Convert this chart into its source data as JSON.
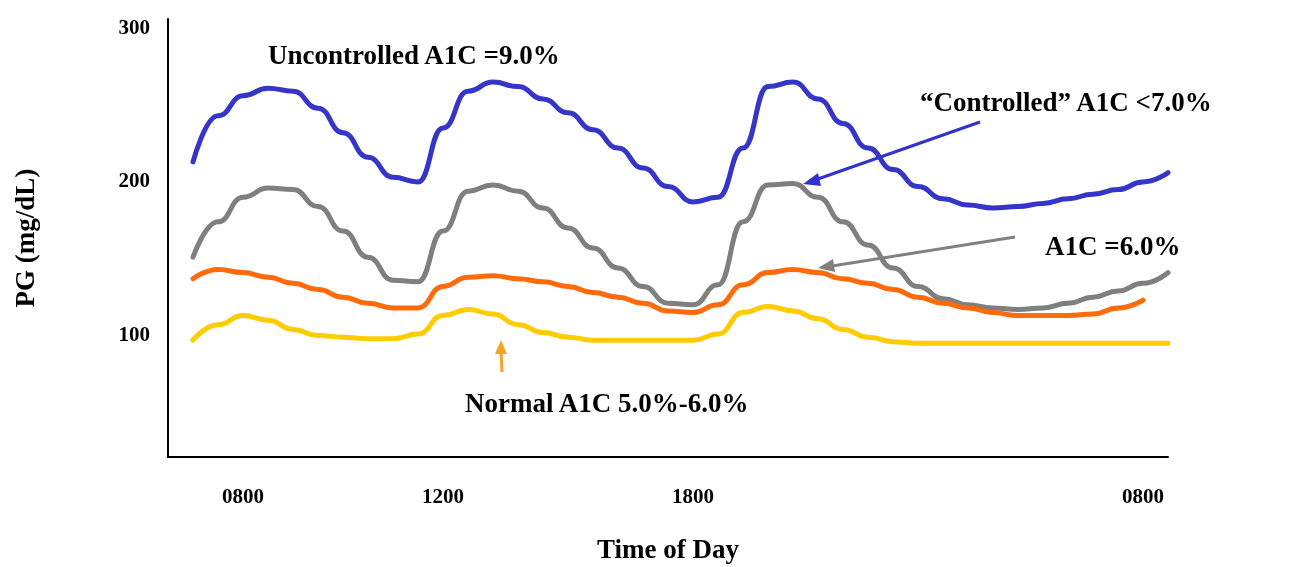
{
  "chart_data": {
    "type": "line",
    "xlabel": "Time of Day",
    "ylabel": "PG (mg/dL)",
    "categories": [
      null,
      null,
      null,
      "0800",
      null,
      null,
      null,
      null,
      null,
      null,
      null,
      "1200",
      null,
      null,
      null,
      null,
      null,
      null,
      null,
      null,
      null,
      "1800",
      null,
      null,
      null,
      null,
      null,
      null,
      null,
      null,
      null,
      null,
      null,
      null,
      null,
      null,
      null,
      null,
      null,
      "0800",
      null
    ],
    "series": [
      {
        "name": "Uncontrolled A1C =9.0%",
        "color": "#3535c8",
        "values": [
          null,
          212,
          242,
          255,
          260,
          258,
          247,
          231,
          215,
          202,
          199,
          234,
          258,
          264,
          261,
          253,
          244,
          233,
          221,
          208,
          196,
          186,
          189,
          221,
          261,
          264,
          253,
          237,
          221,
          207,
          196,
          188,
          184,
          182,
          183,
          185,
          188,
          191,
          194,
          199,
          205
        ]
      },
      {
        "name": "“Controlled” A1C <7.0%",
        "color": "#7f7f7f",
        "values": [
          null,
          150,
          173,
          189,
          195,
          194,
          183,
          167,
          150,
          135,
          134,
          167,
          193,
          197,
          193,
          182,
          169,
          156,
          143,
          131,
          120,
          119,
          132,
          173,
          197,
          198,
          189,
          173,
          158,
          143,
          131,
          123,
          119,
          117,
          116,
          117,
          120,
          124,
          128,
          133,
          140
        ]
      },
      {
        "name": "A1C =6.0%",
        "color": "#ff6a0a",
        "values": [
          null,
          136,
          142,
          140,
          137,
          133,
          129,
          124,
          120,
          117,
          117,
          131,
          137,
          138,
          136,
          134,
          131,
          127,
          124,
          120,
          115,
          114,
          119,
          132,
          140,
          142,
          140,
          136,
          133,
          129,
          124,
          120,
          117,
          114,
          112,
          112,
          112,
          113,
          117,
          122,
          null
        ]
      },
      {
        "name": "Normal A1C 5.0%-6.0%",
        "color": "#ffcc00",
        "values": [
          null,
          96,
          106,
          112,
          109,
          103,
          99,
          98,
          97,
          97,
          100,
          112,
          116,
          113,
          106,
          101,
          98,
          96,
          96,
          96,
          96,
          96,
          100,
          114,
          118,
          115,
          110,
          103,
          98,
          95,
          94,
          94,
          94,
          94,
          94,
          94,
          94,
          94,
          94,
          94,
          94
        ]
      }
    ],
    "ylim": [
      20,
      305
    ],
    "yticks": [
      100,
      200,
      300
    ],
    "legend": false,
    "grid": false,
    "marker": "none"
  }
}
